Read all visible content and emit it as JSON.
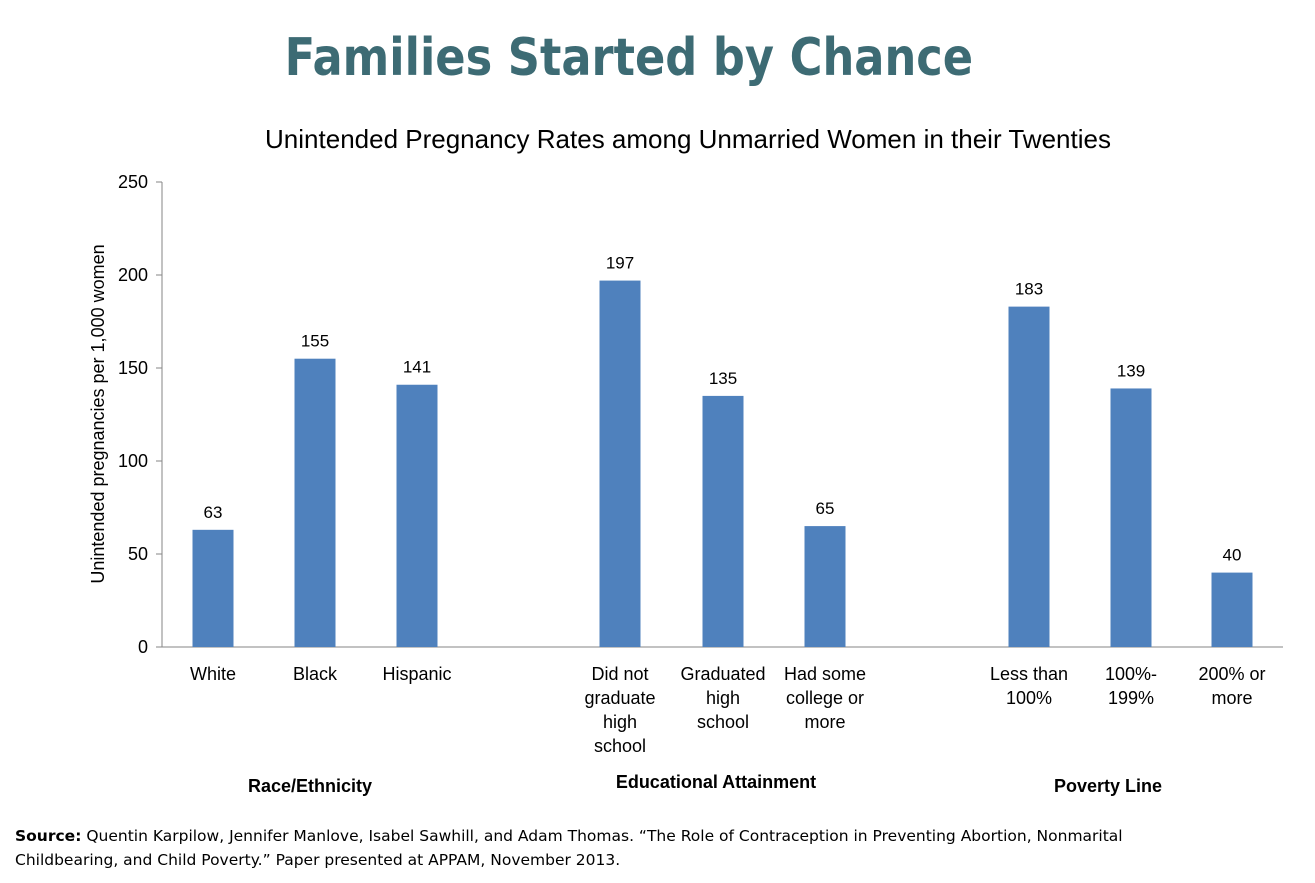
{
  "title": "Families Started by Chance",
  "source": {
    "label": "Source:",
    "text": "Quentin Karpilow, Jennifer Manlove, Isabel Sawhill, and Adam Thomas. “The Role of Contraception in Preventing Abortion, Nonmarital Childbearing, and Child Poverty.” Paper presented at APPAM, November 2013."
  },
  "colors": {
    "title": "#3d6b74",
    "bar": "#4f81bd",
    "axis": "#868686"
  },
  "chart_data": {
    "type": "bar",
    "title": "Unintended Pregnancy Rates among Unmarried Women in their Twenties",
    "ylabel": "Unintended pregnancies per 1,000 women",
    "xlabel": "",
    "ylim": [
      0,
      250
    ],
    "yticks": [
      0,
      50,
      100,
      150,
      200,
      250
    ],
    "grid": false,
    "categories": [
      [
        "White"
      ],
      [
        "Black"
      ],
      [
        "Hispanic"
      ],
      [
        "Did not",
        "graduate",
        "high",
        "school"
      ],
      [
        "Graduated",
        "high",
        "school"
      ],
      [
        "Had some",
        "college or",
        "more"
      ],
      [
        "Less than",
        "100%"
      ],
      [
        "100%-",
        "199%"
      ],
      [
        "200% or",
        "more"
      ]
    ],
    "values": [
      63,
      155,
      141,
      197,
      135,
      65,
      183,
      139,
      40
    ],
    "groups": [
      {
        "name": "Race/Ethnicity",
        "indices": [
          0,
          1,
          2
        ]
      },
      {
        "name": "Educational Attainment",
        "indices": [
          3,
          4,
          5
        ]
      },
      {
        "name": "Poverty Line",
        "indices": [
          6,
          7,
          8
        ]
      }
    ]
  }
}
